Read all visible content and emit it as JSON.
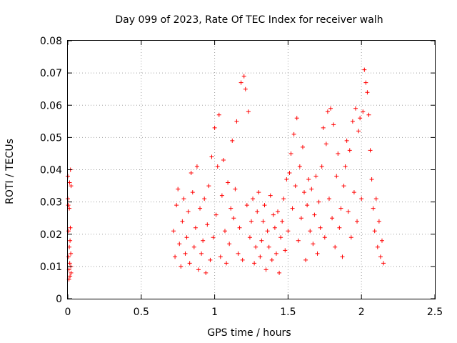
{
  "chart_data": {
    "type": "scatter",
    "title": "Day 099 of 2023, Rate Of TEC Index for receiver walh",
    "xlabel": "GPS time / hours",
    "ylabel": "ROTI / TECUs",
    "xlim": [
      0,
      2.5
    ],
    "ylim": [
      0,
      0.08
    ],
    "x_ticks": [
      "0",
      "0.5",
      "1",
      "1.5",
      "2",
      "2.5"
    ],
    "y_ticks": [
      "0",
      "0.01",
      "0.02",
      "0.03",
      "0.04",
      "0.05",
      "0.06",
      "0.07",
      "0.08"
    ],
    "grid": true,
    "marker": "plus",
    "marker_color": "#ff0000",
    "series": [
      {
        "points": [
          [
            0.0,
            0.038
          ],
          [
            0.0,
            0.031
          ],
          [
            0.003,
            0.029
          ],
          [
            0.005,
            0.021
          ],
          [
            0.005,
            0.013
          ],
          [
            0.008,
            0.009
          ],
          [
            0.008,
            0.006
          ],
          [
            0.01,
            0.016
          ],
          [
            0.01,
            0.028
          ],
          [
            0.012,
            0.036
          ],
          [
            0.013,
            0.011
          ],
          [
            0.015,
            0.018
          ],
          [
            0.015,
            0.007
          ],
          [
            0.017,
            0.022
          ],
          [
            0.018,
            0.04
          ],
          [
            0.02,
            0.014
          ],
          [
            0.02,
            0.01
          ],
          [
            0.022,
            0.035
          ],
          [
            0.022,
            0.008
          ],
          [
            0.72,
            0.021
          ],
          [
            0.73,
            0.013
          ],
          [
            0.74,
            0.029
          ],
          [
            0.75,
            0.034
          ],
          [
            0.76,
            0.017
          ],
          [
            0.77,
            0.01
          ],
          [
            0.78,
            0.024
          ],
          [
            0.79,
            0.031
          ],
          [
            0.8,
            0.014
          ],
          [
            0.81,
            0.019
          ],
          [
            0.82,
            0.027
          ],
          [
            0.83,
            0.011
          ],
          [
            0.84,
            0.039
          ],
          [
            0.85,
            0.033
          ],
          [
            0.86,
            0.016
          ],
          [
            0.87,
            0.022
          ],
          [
            0.88,
            0.041
          ],
          [
            0.89,
            0.009
          ],
          [
            0.9,
            0.028
          ],
          [
            0.91,
            0.014
          ],
          [
            0.92,
            0.018
          ],
          [
            0.93,
            0.031
          ],
          [
            0.94,
            0.008
          ],
          [
            0.95,
            0.023
          ],
          [
            0.96,
            0.035
          ],
          [
            0.97,
            0.012
          ],
          [
            0.98,
            0.044
          ],
          [
            0.99,
            0.019
          ],
          [
            1.0,
            0.053
          ],
          [
            1.01,
            0.026
          ],
          [
            1.02,
            0.041
          ],
          [
            1.03,
            0.057
          ],
          [
            1.04,
            0.013
          ],
          [
            1.05,
            0.032
          ],
          [
            1.06,
            0.043
          ],
          [
            1.07,
            0.021
          ],
          [
            1.08,
            0.011
          ],
          [
            1.09,
            0.036
          ],
          [
            1.1,
            0.017
          ],
          [
            1.11,
            0.028
          ],
          [
            1.12,
            0.049
          ],
          [
            1.13,
            0.025
          ],
          [
            1.14,
            0.034
          ],
          [
            1.15,
            0.055
          ],
          [
            1.16,
            0.014
          ],
          [
            1.17,
            0.022
          ],
          [
            1.18,
            0.067
          ],
          [
            1.19,
            0.012
          ],
          [
            1.2,
            0.069
          ],
          [
            1.21,
            0.065
          ],
          [
            1.22,
            0.029
          ],
          [
            1.23,
            0.058
          ],
          [
            1.24,
            0.019
          ],
          [
            1.25,
            0.024
          ],
          [
            1.26,
            0.031
          ],
          [
            1.27,
            0.011
          ],
          [
            1.28,
            0.016
          ],
          [
            1.29,
            0.027
          ],
          [
            1.3,
            0.033
          ],
          [
            1.31,
            0.013
          ],
          [
            1.32,
            0.018
          ],
          [
            1.33,
            0.024
          ],
          [
            1.34,
            0.029
          ],
          [
            1.35,
            0.009
          ],
          [
            1.36,
            0.021
          ],
          [
            1.37,
            0.016
          ],
          [
            1.38,
            0.032
          ],
          [
            1.39,
            0.012
          ],
          [
            1.4,
            0.026
          ],
          [
            1.41,
            0.022
          ],
          [
            1.42,
            0.014
          ],
          [
            1.43,
            0.027
          ],
          [
            1.44,
            0.008
          ],
          [
            1.45,
            0.019
          ],
          [
            1.46,
            0.024
          ],
          [
            1.47,
            0.031
          ],
          [
            1.48,
            0.015
          ],
          [
            1.49,
            0.037
          ],
          [
            1.5,
            0.021
          ],
          [
            1.51,
            0.039
          ],
          [
            1.52,
            0.045
          ],
          [
            1.53,
            0.028
          ],
          [
            1.54,
            0.051
          ],
          [
            1.55,
            0.035
          ],
          [
            1.56,
            0.056
          ],
          [
            1.57,
            0.018
          ],
          [
            1.58,
            0.041
          ],
          [
            1.59,
            0.025
          ],
          [
            1.6,
            0.047
          ],
          [
            1.61,
            0.033
          ],
          [
            1.62,
            0.012
          ],
          [
            1.63,
            0.029
          ],
          [
            1.64,
            0.037
          ],
          [
            1.65,
            0.021
          ],
          [
            1.66,
            0.034
          ],
          [
            1.67,
            0.017
          ],
          [
            1.68,
            0.026
          ],
          [
            1.69,
            0.038
          ],
          [
            1.7,
            0.014
          ],
          [
            1.71,
            0.03
          ],
          [
            1.72,
            0.022
          ],
          [
            1.73,
            0.041
          ],
          [
            1.74,
            0.053
          ],
          [
            1.75,
            0.019
          ],
          [
            1.76,
            0.048
          ],
          [
            1.77,
            0.058
          ],
          [
            1.78,
            0.031
          ],
          [
            1.79,
            0.059
          ],
          [
            1.8,
            0.025
          ],
          [
            1.81,
            0.054
          ],
          [
            1.82,
            0.016
          ],
          [
            1.83,
            0.038
          ],
          [
            1.84,
            0.045
          ],
          [
            1.85,
            0.022
          ],
          [
            1.86,
            0.028
          ],
          [
            1.87,
            0.013
          ],
          [
            1.88,
            0.035
          ],
          [
            1.89,
            0.041
          ],
          [
            1.9,
            0.049
          ],
          [
            1.91,
            0.027
          ],
          [
            1.92,
            0.046
          ],
          [
            1.93,
            0.019
          ],
          [
            1.94,
            0.055
          ],
          [
            1.95,
            0.033
          ],
          [
            1.96,
            0.059
          ],
          [
            1.97,
            0.024
          ],
          [
            1.98,
            0.052
          ],
          [
            1.99,
            0.056
          ],
          [
            2.0,
            0.031
          ],
          [
            2.01,
            0.058
          ],
          [
            2.02,
            0.071
          ],
          [
            2.03,
            0.067
          ],
          [
            2.04,
            0.064
          ],
          [
            2.05,
            0.057
          ],
          [
            2.06,
            0.046
          ],
          [
            2.07,
            0.037
          ],
          [
            2.08,
            0.028
          ],
          [
            2.09,
            0.021
          ],
          [
            2.1,
            0.031
          ],
          [
            2.11,
            0.016
          ],
          [
            2.12,
            0.024
          ],
          [
            2.13,
            0.013
          ],
          [
            2.14,
            0.018
          ],
          [
            2.15,
            0.011
          ]
        ]
      }
    ]
  }
}
